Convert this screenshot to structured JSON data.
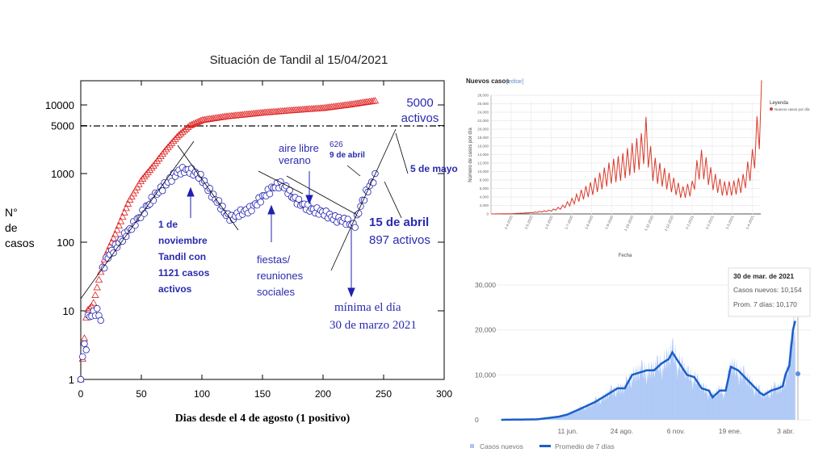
{
  "chart_data": [
    {
      "type": "scatter",
      "title": "Situación de Tandil al 15/04/2021",
      "xlabel": "Dias  desde el 4 de agosto  (1 positivo)",
      "ylabel": [
        "N°",
        "de",
        "casos"
      ],
      "xlim": [
        0,
        300
      ],
      "ylim": [
        1,
        10000
      ],
      "yscale": "log",
      "xticks": [
        "0",
        "50",
        "100",
        "150",
        "200",
        "250",
        "300"
      ],
      "yticks": [
        "1",
        "10",
        "100",
        "1000",
        "5000",
        "10000"
      ],
      "threshold_line": 5000,
      "series": [
        {
          "name": "acumulados",
          "color": "#e02020",
          "marker": "triangle",
          "x": [
            0,
            5,
            10,
            17,
            20,
            30,
            40,
            50,
            60,
            70,
            80,
            90,
            100,
            120,
            150,
            180,
            200,
            220,
            243
          ],
          "y": [
            1,
            10,
            12,
            40,
            60,
            150,
            400,
            800,
            1300,
            2200,
            3500,
            5000,
            6000,
            6800,
            7700,
            8500,
            9000,
            10000,
            11500
          ]
        },
        {
          "name": "activos",
          "color": "#2020b0",
          "marker": "circle",
          "x": [
            0,
            2,
            5,
            6,
            10,
            14,
            17,
            18,
            22,
            30,
            40,
            50,
            60,
            70,
            80,
            85,
            90,
            95,
            100,
            105,
            110,
            115,
            120,
            125,
            130,
            140,
            150,
            160,
            165,
            170,
            175,
            180,
            190,
            200,
            210,
            220,
            226,
            230,
            235,
            238,
            243
          ],
          "y": [
            1,
            3,
            3,
            8,
            9,
            10,
            7,
            40,
            60,
            90,
            150,
            250,
            450,
            700,
            1050,
            1121,
            1100,
            1000,
            850,
            600,
            450,
            350,
            250,
            220,
            260,
            300,
            450,
            650,
            700,
            600,
            450,
            380,
            300,
            270,
            220,
            200,
            170,
            300,
            500,
            626,
            897
          ]
        }
      ],
      "annotations": {
        "a5000": [
          "5000",
          "activos"
        ],
        "mayo": "5 de mayo",
        "abril9": [
          "626",
          "9 de abril"
        ],
        "abril15": [
          "15 de abril",
          "897 activos"
        ],
        "verano": [
          "aire libre",
          "verano"
        ],
        "noviembre": [
          "1 de",
          "noviembre",
          "Tandil con",
          "1121 casos",
          "activos"
        ],
        "fiestas": [
          "fiestas/",
          "reuniones",
          "sociales"
        ],
        "minima": [
          "mínima el día",
          "30 de marzo 2021"
        ]
      }
    },
    {
      "type": "line",
      "title": "Nuevos casos",
      "edit_link": "[editar]",
      "xlabel": "Fecha",
      "ylabel": "Número de casos por día",
      "ylim": [
        0,
        28000
      ],
      "yticks": [
        "0",
        "2,000",
        "4,000",
        "6,000",
        "8,000",
        "10,000",
        "12,000",
        "14,000",
        "16,000",
        "18,000",
        "20,000",
        "22,000",
        "24,000",
        "26,000",
        "28,000"
      ],
      "xticks": [
        "1-4-2020",
        "1-5-2020",
        "1-6-2020",
        "1-7-2020",
        "1-8-2020",
        "1-9-2020",
        "1-10-2020",
        "1-11-2020",
        "1-12-2020",
        "1-1-2021",
        "1-2-2021",
        "1-3-2021",
        "1-4-2021"
      ],
      "legend_title": "Leyenda",
      "legend": "Nuevos casos por día",
      "color": "#d93a2b",
      "months_since_mar_2020": [
        0,
        1,
        2,
        3,
        3.5,
        4,
        4.5,
        5,
        5.5,
        6,
        6.5,
        7,
        7.5,
        7.7,
        8,
        8.5,
        9,
        9.5,
        10,
        10.3,
        10.5,
        11,
        11.5,
        12,
        12.5,
        13,
        13.3,
        13.5
      ],
      "values": [
        0,
        50,
        300,
        800,
        1500,
        2800,
        4500,
        6000,
        8000,
        10000,
        11000,
        13000,
        15000,
        18000,
        11000,
        9000,
        7000,
        5000,
        6000,
        11000,
        12000,
        8000,
        6000,
        6000,
        7000,
        12000,
        20000,
        26000
      ]
    },
    {
      "type": "area",
      "xticks": [
        "11 jun.",
        "24 ago.",
        "6 nov.",
        "19 ene.",
        "3 abr."
      ],
      "yticks": [
        "0",
        "10,000",
        "20,000",
        "30,000"
      ],
      "ylim": [
        0,
        30000
      ],
      "legend": [
        "Casos nuevos",
        "Promedio de 7 días"
      ],
      "bar_color": "#a9c4f5",
      "line_color": "#1a5fc8",
      "days_since_mar_1_2020": [
        11,
        60,
        90,
        102,
        120,
        140,
        155,
        170,
        180,
        190,
        200,
        210,
        220,
        230,
        240,
        245,
        255,
        265,
        275,
        285,
        295,
        300,
        310,
        318,
        325,
        335,
        350,
        365,
        370,
        380,
        390,
        396,
        400,
        405,
        410,
        413
      ],
      "avg7": [
        0,
        100,
        700,
        1200,
        2500,
        4000,
        5500,
        7000,
        7000,
        10000,
        10500,
        11000,
        11000,
        12500,
        13500,
        15000,
        12500,
        10000,
        9500,
        7000,
        6500,
        5000,
        6500,
        6500,
        11800,
        11000,
        8500,
        6000,
        5500,
        6500,
        7000,
        7500,
        10170,
        12000,
        20000,
        22000
      ],
      "tooltip": {
        "date": "30 de mar. de 2021",
        "cases": "Casos nuevos: 10,154",
        "avg": "Prom. 7 días: 10,170"
      }
    }
  ]
}
